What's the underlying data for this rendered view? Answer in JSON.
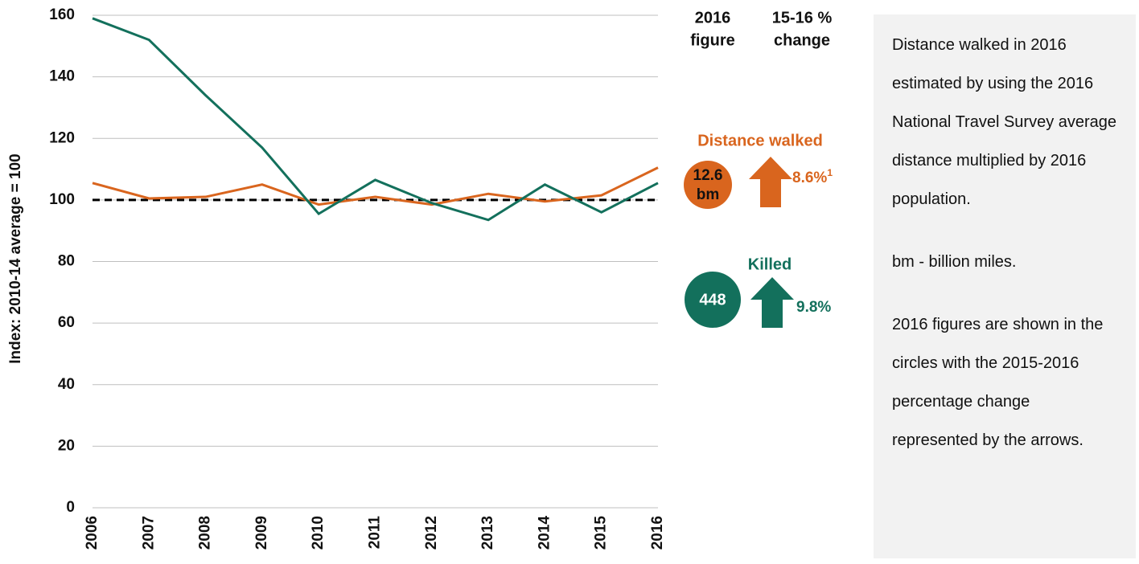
{
  "chart_data": {
    "type": "line",
    "y_label": "Index: 2010-14 average = 100",
    "categories": [
      "2006",
      "2007",
      "2008",
      "2009",
      "2010",
      "2011",
      "2012",
      "2013",
      "2014",
      "2015",
      "2016"
    ],
    "series": [
      {
        "name": "Distance walked",
        "color": "#d9651e",
        "values": [
          105.5,
          100.5,
          101,
          105,
          98.5,
          101,
          98.5,
          102,
          99.5,
          101.5,
          110.5
        ],
        "figure": 12.6,
        "figure_unit": "bm",
        "change": 8.6,
        "change_label": "8.6%",
        "footnote": "1"
      },
      {
        "name": "Killed",
        "color": "#13705c",
        "values": [
          159,
          152,
          134,
          117,
          95.5,
          106.5,
          99,
          93.5,
          105,
          96,
          105.5
        ],
        "figure": 448,
        "change": 9.8,
        "change_label": "9.8%"
      }
    ],
    "reference_line": 100,
    "ylim": [
      0,
      160
    ],
    "yticks": [
      0,
      20,
      40,
      60,
      80,
      100,
      120,
      140,
      160
    ],
    "grid": true,
    "figure_header": [
      "2016",
      "figure"
    ],
    "change_header": [
      "15-16 %",
      "change"
    ],
    "notes": [
      "Distance walked in 2016 estimated by using the 2016 National Travel Survey average distance multiplied by 2016 population.",
      "bm - billion miles.",
      "2016 figures are shown in the circles with the 2015-2016 percentage change represented by the arrows."
    ]
  }
}
